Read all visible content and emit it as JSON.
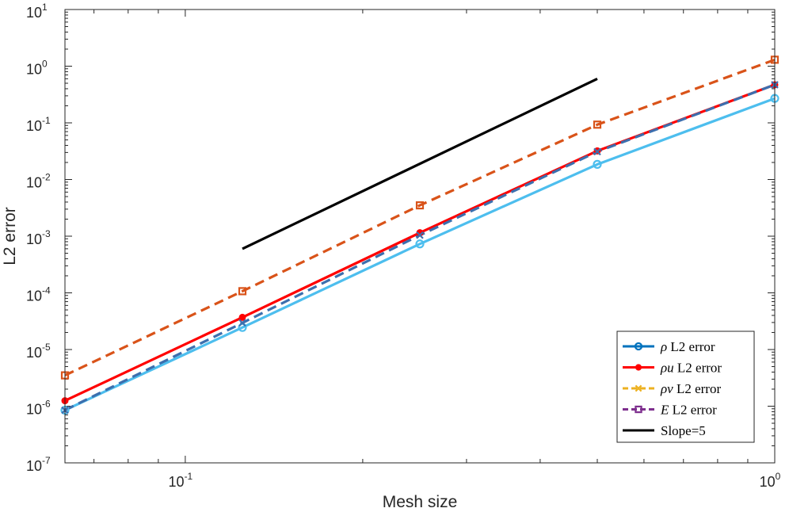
{
  "chart_data": {
    "type": "line",
    "scale": {
      "x": "log",
      "y": "log"
    },
    "xlabel": "Mesh size",
    "ylabel": "L2 error",
    "xlim": [
      0.0625,
      1
    ],
    "ylim": [
      1e-07,
      10
    ],
    "x_ticks": [
      {
        "value": 0.1,
        "base": "10",
        "exp": "-1"
      },
      {
        "value": 1,
        "base": "10",
        "exp": "0"
      }
    ],
    "y_ticks": [
      {
        "value": 1e-07,
        "base": "10",
        "exp": "-7"
      },
      {
        "value": 1e-06,
        "base": "10",
        "exp": "-6"
      },
      {
        "value": 1e-05,
        "base": "10",
        "exp": "-5"
      },
      {
        "value": 0.0001,
        "base": "10",
        "exp": "-4"
      },
      {
        "value": 0.001,
        "base": "10",
        "exp": "-3"
      },
      {
        "value": 0.01,
        "base": "10",
        "exp": "-2"
      },
      {
        "value": 0.1,
        "base": "10",
        "exp": "-1"
      },
      {
        "value": 1,
        "base": "10",
        "exp": "0"
      },
      {
        "value": 10,
        "base": "10",
        "exp": "1"
      }
    ],
    "legend_position": "bottom-right",
    "series": [
      {
        "name": "rho",
        "math": "ρ",
        "label": " L2 error",
        "color": "#0072BD",
        "dash": "solid",
        "marker": "circle",
        "x": [
          0.0625,
          0.125,
          0.25,
          0.5,
          1
        ],
        "y": [
          8.5e-07,
          2.45e-05,
          0.00073,
          0.0185,
          0.27
        ]
      },
      {
        "name": "rho_u",
        "math": "ρu",
        "label": " L2 error",
        "color": "#FF0000",
        "dash": "solid",
        "marker": "dot",
        "x": [
          0.0625,
          0.125,
          0.25,
          0.5,
          1
        ],
        "y": [
          1.25e-06,
          3.7e-05,
          0.00115,
          0.032,
          0.47
        ]
      },
      {
        "name": "rho_v",
        "math": "ρv",
        "label": " L2 error",
        "color": "#EDB120",
        "dash": "dashed",
        "marker": "x",
        "x": [
          0.0625,
          0.125,
          0.25,
          0.5,
          1
        ],
        "y": [
          8.5e-07,
          2.95e-05,
          0.00104,
          0.031,
          0.47
        ]
      },
      {
        "name": "E",
        "math": "E",
        "label": " L2 error",
        "color": "#7E2F8E",
        "dash": "dashed",
        "marker": "square",
        "x": [
          0.0625,
          0.125,
          0.25,
          0.5,
          1
        ],
        "y": [
          3.5e-06,
          0.000107,
          0.0035,
          0.093,
          1.3
        ]
      },
      {
        "name": "slope",
        "math": "",
        "label": "Slope=5",
        "color": "#000000",
        "dash": "solid",
        "marker": "none",
        "x": [
          0.125,
          0.5
        ],
        "y": [
          0.0006,
          0.6
        ]
      }
    ],
    "drawn_lines": [
      {
        "series": "E",
        "color": "#D95319",
        "dash": "dashed",
        "marker": "square"
      },
      {
        "series": "rho_u",
        "color": "#FF0000",
        "dash": "solid",
        "marker": "dot"
      },
      {
        "series": "rho",
        "color": "#4DBEEE",
        "dash": "solid",
        "marker": "circle"
      },
      {
        "series": "rho_v",
        "color": "#3C6FAE",
        "dash": "dashed",
        "marker": "x"
      },
      {
        "series": "slope",
        "color": "#000000",
        "dash": "solid",
        "marker": "none"
      }
    ]
  }
}
